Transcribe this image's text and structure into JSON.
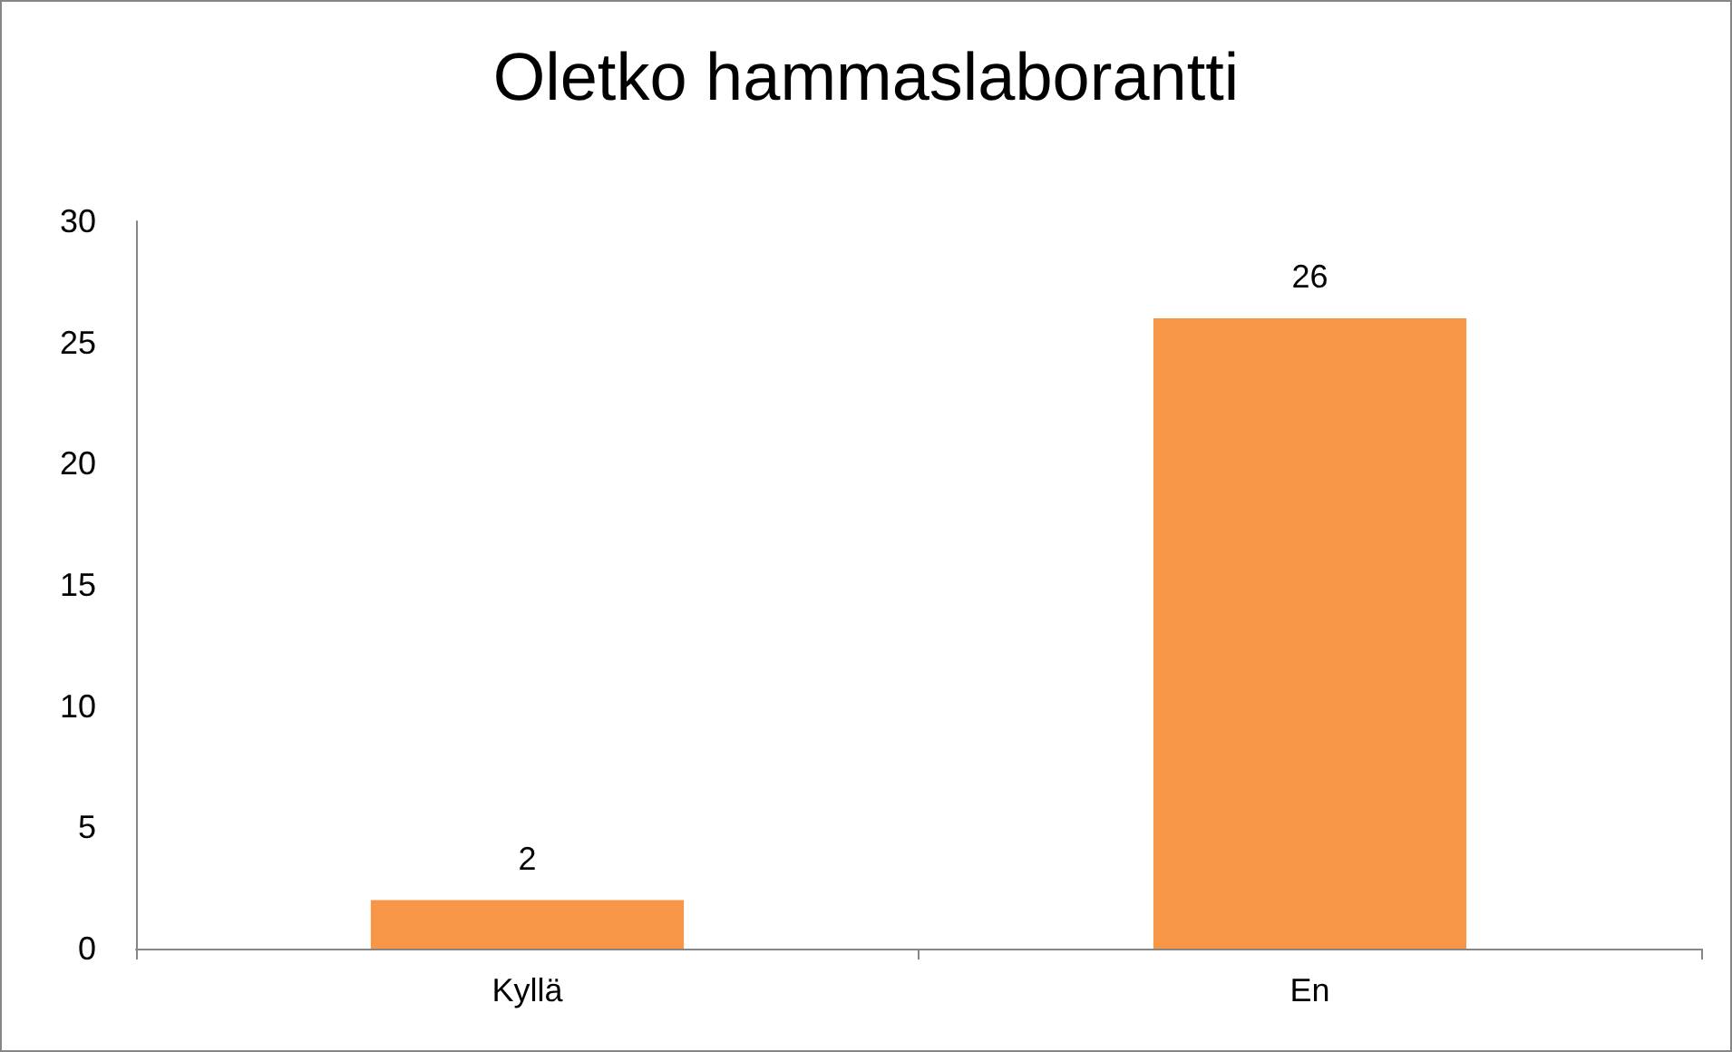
{
  "chart_data": {
    "type": "bar",
    "title": "Oletko hammaslaborantti",
    "categories": [
      "Kyllä",
      "En"
    ],
    "values": [
      2,
      26
    ],
    "color": "#f79646",
    "ylim": [
      0,
      30
    ],
    "yticks": [
      0,
      5,
      10,
      15,
      20,
      25,
      30
    ],
    "grid": false,
    "data_labels": true
  }
}
